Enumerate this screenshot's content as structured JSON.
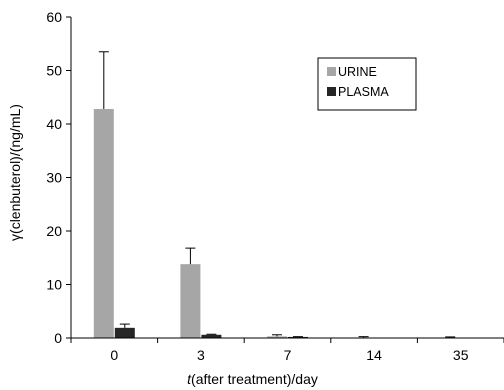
{
  "chart_data": {
    "type": "bar",
    "categories": [
      "0",
      "3",
      "7",
      "14",
      "35"
    ],
    "series": [
      {
        "name": "URINE",
        "color": "#a6a6a6",
        "values": [
          42.8,
          13.8,
          0.3,
          0.05,
          0.05
        ],
        "errors": [
          10.7,
          3.0,
          0.3,
          0.2,
          0.15
        ]
      },
      {
        "name": "PLASMA",
        "color": "#262626",
        "values": [
          1.9,
          0.6,
          0.2,
          0.05,
          0.05
        ],
        "errors": [
          0.7,
          0.1,
          0.05,
          0.0,
          0.0
        ]
      }
    ],
    "xlabel_italic": "t",
    "xlabel_rest": "(after treatment)/day",
    "ylabel_greek": "γ",
    "ylabel_rest": "(clenbuterol)/(ng/mL)",
    "ylim": [
      0,
      60
    ],
    "yticks": [
      0,
      10,
      20,
      30,
      40,
      50,
      60
    ],
    "grid": false,
    "legend_position": "top-right"
  }
}
